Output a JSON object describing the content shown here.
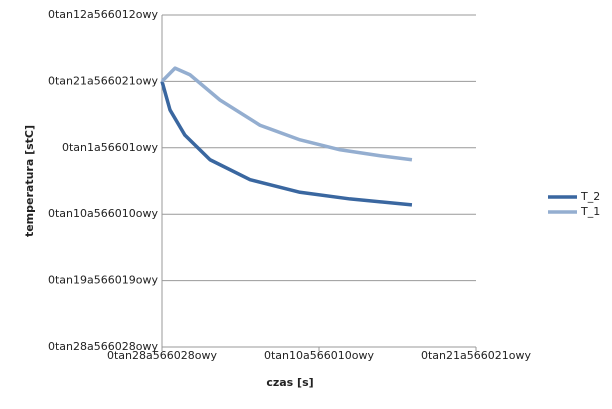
{
  "chart_data": {
    "type": "line",
    "xlabel": "czas [s]",
    "ylabel": "temperatura [stC]",
    "xlim": [
      0,
      2
    ],
    "ylim": [
      0,
      5
    ],
    "xticks": [
      {
        "value": 0,
        "label": "0tan28a566028owy"
      },
      {
        "value": 1,
        "label": "0tan10a566010owy"
      },
      {
        "value": 2,
        "label": "0tan21a566021owy"
      }
    ],
    "yticks": [
      {
        "value": 0,
        "label": "0tan28a566028owy"
      },
      {
        "value": 1,
        "label": "0tan19a566019owy"
      },
      {
        "value": 2,
        "label": "0tan10a566010owy"
      },
      {
        "value": 3,
        "label": "0tan1a56601owy"
      },
      {
        "value": 4,
        "label": "0tan21a566021owy"
      },
      {
        "value": 5,
        "label": "0tan12a566012owy"
      }
    ],
    "grid": true,
    "series": [
      {
        "name": "T_2",
        "color": "#3a67a0",
        "x": [
          0,
          0.051,
          0.146,
          0.306,
          0.561,
          0.879,
          1.197,
          1.592
        ],
        "values": [
          4.0,
          3.57,
          3.19,
          2.82,
          2.52,
          2.33,
          2.23,
          2.14
        ]
      },
      {
        "name": "T_1",
        "color": "#94aed0",
        "x": [
          0,
          0.083,
          0.178,
          0.369,
          0.624,
          0.879,
          1.134,
          1.389,
          1.592
        ],
        "values": [
          4.0,
          4.2,
          4.1,
          3.72,
          3.34,
          3.12,
          2.97,
          2.88,
          2.82
        ]
      }
    ]
  }
}
